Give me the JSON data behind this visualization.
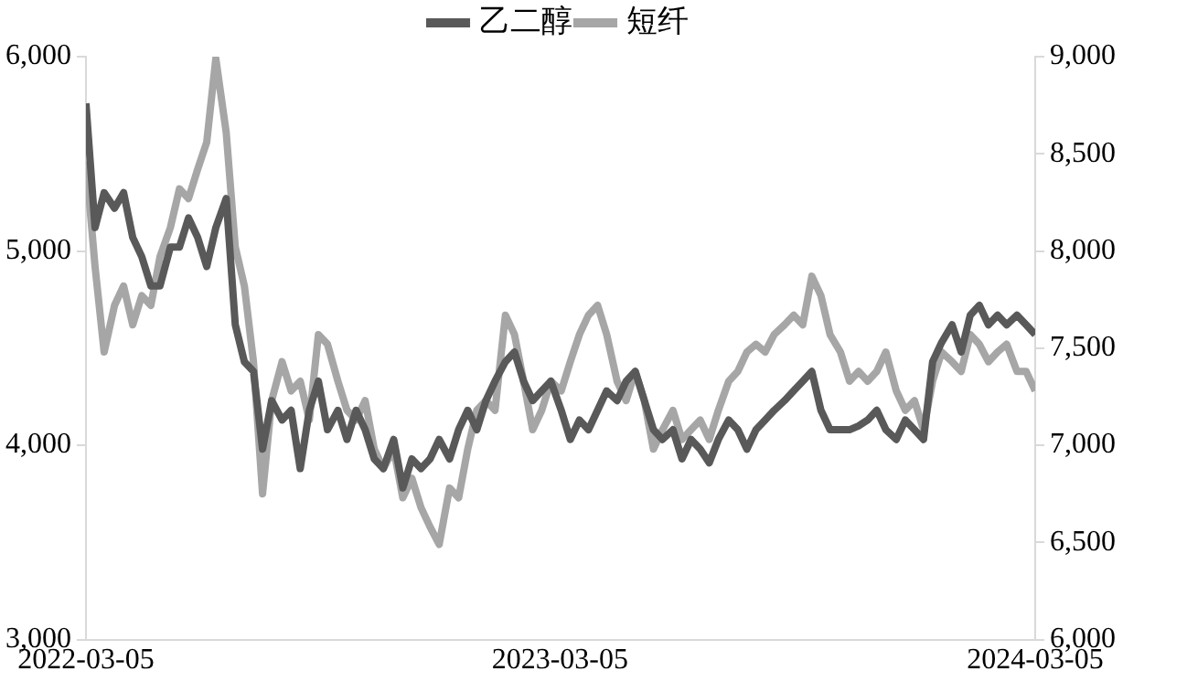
{
  "chart_data": {
    "type": "line",
    "legend": "top",
    "grid": false,
    "x": [
      "2022-03-05",
      "2022-03-12",
      "2022-03-19",
      "2022-03-27",
      "2022-04-03",
      "2022-04-10",
      "2022-04-17",
      "2022-04-24",
      "2022-05-01",
      "2022-05-09",
      "2022-05-16",
      "2022-05-23",
      "2022-05-30",
      "2022-06-06",
      "2022-06-13",
      "2022-06-21",
      "2022-06-28",
      "2022-07-05",
      "2022-07-12",
      "2022-07-19",
      "2022-07-26",
      "2022-08-03",
      "2022-08-10",
      "2022-08-17",
      "2022-08-24",
      "2022-08-31",
      "2022-09-07",
      "2022-09-15",
      "2022-09-22",
      "2022-09-29",
      "2022-10-06",
      "2022-10-13",
      "2022-10-20",
      "2022-10-28",
      "2022-11-04",
      "2022-11-11",
      "2022-11-18",
      "2022-11-25",
      "2022-12-02",
      "2022-12-10",
      "2022-12-17",
      "2022-12-24",
      "2022-12-31",
      "2023-01-07",
      "2023-01-14",
      "2023-01-22",
      "2023-01-29",
      "2023-02-05",
      "2023-02-12",
      "2023-02-19",
      "2023-02-26",
      "2023-03-06",
      "2023-03-13",
      "2023-03-20",
      "2023-03-27",
      "2023-04-03",
      "2023-04-10",
      "2023-04-18",
      "2023-04-25",
      "2023-05-02",
      "2023-05-09",
      "2023-05-16",
      "2023-05-23",
      "2023-05-31",
      "2023-06-07",
      "2023-06-14",
      "2023-06-21",
      "2023-06-28",
      "2023-07-05",
      "2023-07-13",
      "2023-07-20",
      "2023-07-27",
      "2023-08-03",
      "2023-08-10",
      "2023-08-17",
      "2023-08-25",
      "2023-09-01",
      "2023-09-08",
      "2023-09-15",
      "2023-09-22",
      "2023-09-29",
      "2023-10-07",
      "2023-10-14",
      "2023-10-21",
      "2023-10-28",
      "2023-11-04",
      "2023-11-11",
      "2023-11-19",
      "2023-11-26",
      "2023-12-03",
      "2023-12-10",
      "2023-12-17",
      "2023-12-24",
      "2024-01-01",
      "2024-01-08",
      "2024-01-15",
      "2024-01-22",
      "2024-01-29",
      "2024-02-05",
      "2024-02-12",
      "2024-02-20",
      "2024-02-27",
      "2024-03-05"
    ],
    "xlim": [
      "2022-03-05",
      "2024-03-05"
    ],
    "xticks": [
      "2022-03-05",
      "2023-03-05",
      "2024-03-05"
    ],
    "ylim": [
      3000,
      6000
    ],
    "yticks": [
      {
        "value": 3000,
        "label": "3,000"
      },
      {
        "value": 4000,
        "label": "4,000"
      },
      {
        "value": 5000,
        "label": "5,000"
      },
      {
        "value": 6000,
        "label": "6,000"
      }
    ],
    "y2lim": [
      6000,
      9000
    ],
    "y2ticks": [
      {
        "value": 6000,
        "label": "6,000"
      },
      {
        "value": 6500,
        "label": "6,500"
      },
      {
        "value": 7000,
        "label": "7,000"
      },
      {
        "value": 7500,
        "label": "7,500"
      },
      {
        "value": 8000,
        "label": "8,000"
      },
      {
        "value": 8500,
        "label": "8,500"
      },
      {
        "value": 9000,
        "label": "9,000"
      }
    ],
    "series": [
      {
        "name": "乙二醇",
        "color": "#595959",
        "values": [
          5760,
          5120,
          5300,
          5220,
          5300,
          5070,
          4970,
          4820,
          4820,
          5020,
          5020,
          5170,
          5070,
          4920,
          5120,
          5270,
          4620,
          4430,
          4380,
          3980,
          4230,
          4130,
          4180,
          3880,
          4180,
          4330,
          4080,
          4180,
          4030,
          4180,
          4080,
          3930,
          3880,
          4030,
          3780,
          3930,
          3880,
          3930,
          4030,
          3930,
          4080,
          4180,
          4080,
          4230,
          4330,
          4430,
          4480,
          4330,
          4230,
          4280,
          4330,
          4180,
          4030,
          4130,
          4080,
          4180,
          4280,
          4230,
          4330,
          4380,
          4230,
          4080,
          4030,
          4080,
          3930,
          4030,
          3980,
          3910,
          4030,
          4130,
          4080,
          3980,
          4080,
          4130,
          4180,
          4230,
          4280,
          4330,
          4380,
          4180,
          4080,
          4080,
          4080,
          4100,
          4130,
          4180,
          4080,
          4030,
          4130,
          4080,
          4030,
          4430,
          4530,
          4620,
          4480,
          4670,
          4720,
          4620,
          4670,
          4620,
          4670,
          4620,
          4570
        ]
      },
      {
        "name": "短纤",
        "color": "#a6a6a6",
        "axis": "y2",
        "values": [
          8460,
          7920,
          7480,
          7720,
          7820,
          7620,
          7770,
          7720,
          7970,
          8120,
          8320,
          8270,
          8420,
          8560,
          8990,
          8610,
          8020,
          7820,
          7430,
          6750,
          7230,
          7430,
          7280,
          7330,
          7130,
          7570,
          7520,
          7330,
          7180,
          7130,
          7230,
          6980,
          6880,
          6980,
          6730,
          6830,
          6680,
          6580,
          6490,
          6780,
          6730,
          6980,
          7180,
          7230,
          7180,
          7670,
          7570,
          7330,
          7080,
          7180,
          7330,
          7280,
          7430,
          7570,
          7670,
          7720,
          7570,
          7330,
          7230,
          7380,
          7230,
          6980,
          7080,
          7180,
          7030,
          7080,
          7130,
          7030,
          7180,
          7330,
          7380,
          7480,
          7520,
          7480,
          7570,
          7620,
          7670,
          7620,
          7870,
          7770,
          7570,
          7480,
          7330,
          7380,
          7330,
          7380,
          7480,
          7280,
          7180,
          7230,
          7080,
          7330,
          7480,
          7430,
          7380,
          7570,
          7520,
          7430,
          7480,
          7520,
          7380,
          7380,
          7280
        ]
      }
    ]
  }
}
